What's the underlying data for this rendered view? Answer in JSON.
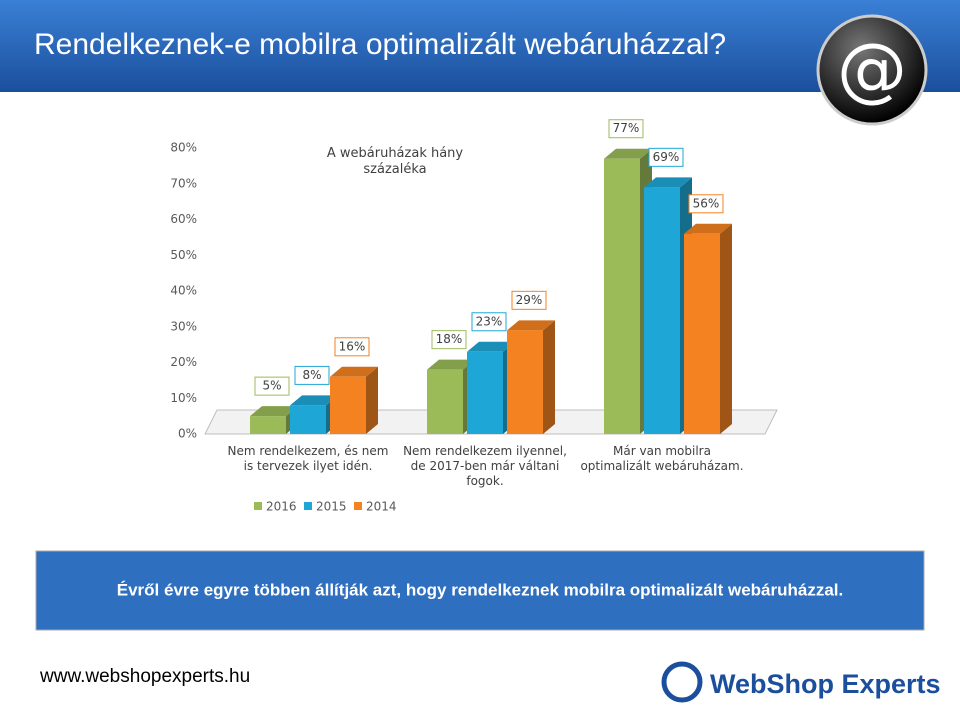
{
  "page": {
    "title": "Rendelkeznek-e mobilra optimalizált webáruházzal?",
    "banner": "Évről évre egyre többen állítják azt, hogy rendelkeznek mobilra optimalizált webáruházzal.",
    "url": "www.webshopexperts.hu",
    "logo": "WebShop Experts"
  },
  "chart_data": {
    "type": "bar",
    "title": "A webáruházak hány százaléka",
    "categories": [
      "Nem rendelkezem, és nem is tervezek ilyet idén.",
      "Nem rendelkezem ilyennel, de 2017-ben már váltani fogok.",
      "Már van mobilra optimalizált webáruházam."
    ],
    "series": [
      {
        "name": "2016",
        "color": "#9bbb59",
        "values": [
          5,
          18,
          77
        ],
        "value_labels": [
          "5%",
          "18%",
          "77%"
        ]
      },
      {
        "name": "2015",
        "color": "#1ea7d6",
        "values": [
          8,
          23,
          69
        ],
        "value_labels": [
          "8%",
          "23%",
          "69%"
        ]
      },
      {
        "name": "2014",
        "color": "#f58220",
        "values": [
          16,
          29,
          56
        ],
        "value_labels": [
          "16%",
          "29%",
          "56%"
        ]
      }
    ],
    "ylim": [
      0,
      80
    ],
    "yticks": [
      {
        "value": 0,
        "label": "0%"
      },
      {
        "value": 10,
        "label": "10%"
      },
      {
        "value": 20,
        "label": "20%"
      },
      {
        "value": 30,
        "label": "30%"
      },
      {
        "value": 40,
        "label": "40%"
      },
      {
        "value": 50,
        "label": "50%"
      },
      {
        "value": 60,
        "label": "60%"
      },
      {
        "value": 70,
        "label": "70%"
      },
      {
        "value": 80,
        "label": "80%"
      }
    ],
    "legend": "bottom"
  }
}
